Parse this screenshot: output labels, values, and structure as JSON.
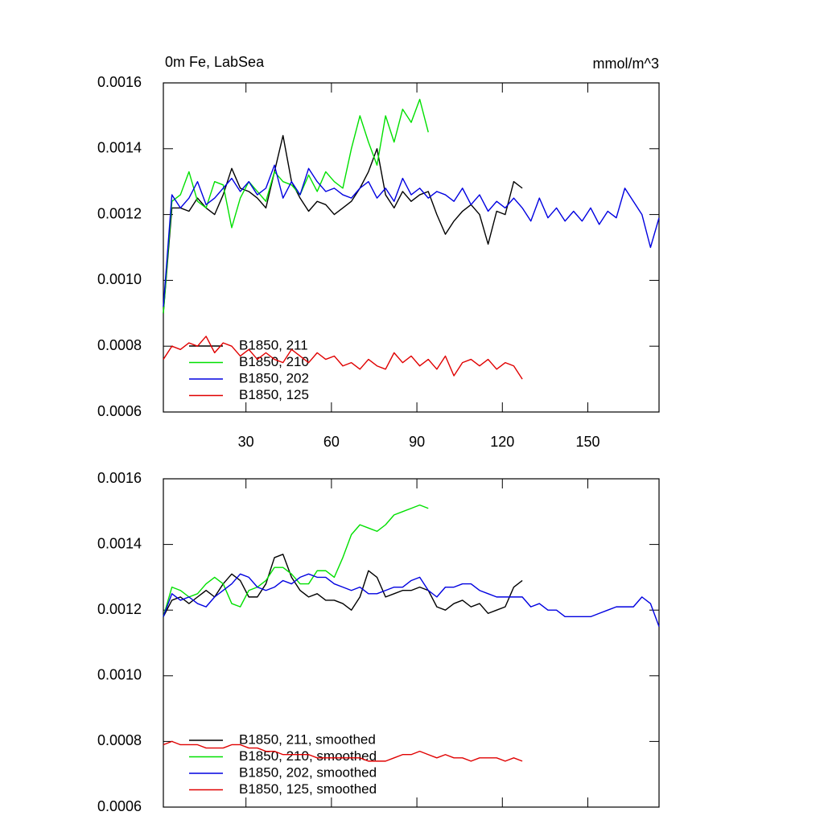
{
  "chart_data": [
    {
      "type": "line",
      "title": "0m Fe, LabSea",
      "units": "mmol/m^3",
      "x": [
        1,
        4,
        7,
        10,
        13,
        16,
        19,
        22,
        25,
        28,
        31,
        34,
        37,
        40,
        43,
        46,
        49,
        52,
        55,
        58,
        61,
        64,
        67,
        70,
        73,
        76,
        79,
        82,
        85,
        88,
        91,
        94,
        97,
        100,
        103,
        106,
        109,
        112,
        115,
        118,
        121,
        124,
        127,
        130,
        133,
        136,
        139,
        142,
        145,
        148,
        151,
        154,
        157,
        160,
        163,
        166,
        169,
        172,
        175
      ],
      "xlim": [
        1,
        175
      ],
      "xticks": [
        30,
        60,
        90,
        120,
        150
      ],
      "xtick_labels": true,
      "ylim": [
        0.0006,
        0.0016
      ],
      "yticks": [
        0.0006,
        0.0008,
        {
          "value": 0.001,
          "label": "0.0010"
        },
        0.0012,
        0.0014,
        0.0016
      ],
      "series": [
        {
          "name": "B1850, 211",
          "color": "#000000",
          "values": [
            0.0009,
            0.00122,
            0.00122,
            0.00121,
            0.00125,
            0.00122,
            0.0012,
            0.00126,
            0.00134,
            0.00128,
            0.00127,
            0.00125,
            0.00122,
            0.00133,
            0.00144,
            0.0013,
            0.00125,
            0.00121,
            0.00124,
            0.00123,
            0.0012,
            0.00122,
            0.00124,
            0.00128,
            0.00133,
            0.0014,
            0.00126,
            0.00122,
            0.00127,
            0.00124,
            0.00126,
            0.00127,
            0.0012,
            0.00114,
            0.00118,
            0.00121,
            0.00123,
            0.0012,
            0.00111,
            0.00121,
            0.0012,
            0.0013,
            0.00128,
            null,
            null,
            null,
            null,
            null,
            null,
            null,
            null,
            null,
            null,
            null,
            null,
            null,
            null,
            null,
            null
          ]
        },
        {
          "name": "B1850, 210",
          "color": "#00e000",
          "values": [
            0.0009,
            0.00124,
            0.00126,
            0.00133,
            0.00124,
            0.00122,
            0.0013,
            0.00129,
            0.00116,
            0.00125,
            0.0013,
            0.00127,
            0.00124,
            0.00133,
            0.0013,
            0.00129,
            0.00126,
            0.00132,
            0.00127,
            0.00133,
            0.0013,
            0.00128,
            0.0014,
            0.0015,
            0.00142,
            0.00135,
            0.0015,
            0.00142,
            0.00152,
            0.00148,
            0.00155,
            0.00145,
            null,
            null,
            null,
            null,
            null,
            null,
            null,
            null,
            null,
            null,
            null,
            null,
            null,
            null,
            null,
            null,
            null,
            null,
            null,
            null,
            null,
            null,
            null,
            null,
            null,
            null,
            null
          ]
        },
        {
          "name": "B1850, 202",
          "color": "#0000e0",
          "values": [
            0.00092,
            0.00126,
            0.00122,
            0.00125,
            0.0013,
            0.00123,
            0.00125,
            0.00128,
            0.00131,
            0.00127,
            0.0013,
            0.00126,
            0.00128,
            0.00135,
            0.00125,
            0.0013,
            0.00126,
            0.00134,
            0.0013,
            0.00127,
            0.00128,
            0.00126,
            0.00125,
            0.00128,
            0.0013,
            0.00125,
            0.00128,
            0.00124,
            0.00131,
            0.00126,
            0.00128,
            0.00125,
            0.00127,
            0.00126,
            0.00124,
            0.00128,
            0.00123,
            0.00126,
            0.00121,
            0.00124,
            0.00122,
            0.00125,
            0.00122,
            0.00118,
            0.00125,
            0.00119,
            0.00122,
            0.00118,
            0.00121,
            0.00118,
            0.00122,
            0.00117,
            0.00121,
            0.00119,
            0.00128,
            0.00124,
            0.0012,
            0.0011,
            0.00119
          ]
        },
        {
          "name": "B1850, 125",
          "color": "#e00000",
          "values": [
            0.00076,
            0.0008,
            0.00079,
            0.00081,
            0.0008,
            0.00083,
            0.00078,
            0.00081,
            0.0008,
            0.00077,
            0.00079,
            0.00076,
            0.00078,
            0.00076,
            0.00075,
            0.00079,
            0.00077,
            0.00075,
            0.00078,
            0.00076,
            0.00077,
            0.00074,
            0.00075,
            0.00073,
            0.00076,
            0.00074,
            0.00073,
            0.00078,
            0.00075,
            0.00077,
            0.00074,
            0.00076,
            0.00073,
            0.00077,
            0.00071,
            0.00075,
            0.00076,
            0.00074,
            0.00076,
            0.00073,
            0.00075,
            0.00074,
            0.0007,
            null,
            null,
            null,
            null,
            null,
            null,
            null,
            null,
            null,
            null,
            null,
            null,
            null,
            null,
            null,
            null
          ]
        }
      ]
    },
    {
      "type": "line",
      "x": [
        1,
        4,
        7,
        10,
        13,
        16,
        19,
        22,
        25,
        28,
        31,
        34,
        37,
        40,
        43,
        46,
        49,
        52,
        55,
        58,
        61,
        64,
        67,
        70,
        73,
        76,
        79,
        82,
        85,
        88,
        91,
        94,
        97,
        100,
        103,
        106,
        109,
        112,
        115,
        118,
        121,
        124,
        127,
        130,
        133,
        136,
        139,
        142,
        145,
        148,
        151,
        154,
        157,
        160,
        163,
        166,
        169,
        172,
        175
      ],
      "xlim": [
        1,
        175
      ],
      "xticks": [
        30,
        60,
        90,
        120,
        150
      ],
      "xtick_labels": false,
      "ylim": [
        0.0006,
        0.0016
      ],
      "yticks": [
        0.0006,
        0.0008,
        {
          "value": 0.001,
          "label": "0.0010"
        },
        0.0012,
        0.0014,
        0.0016
      ],
      "series": [
        {
          "name": "B1850, 211, smoothed",
          "color": "#000000",
          "values": [
            0.00118,
            0.00123,
            0.00124,
            0.00122,
            0.00124,
            0.00126,
            0.00124,
            0.00128,
            0.00131,
            0.00129,
            0.00124,
            0.00124,
            0.00128,
            0.00136,
            0.00137,
            0.0013,
            0.00126,
            0.00124,
            0.00125,
            0.00123,
            0.00123,
            0.00122,
            0.0012,
            0.00124,
            0.00132,
            0.0013,
            0.00124,
            0.00125,
            0.00126,
            0.00126,
            0.00127,
            0.00126,
            0.00121,
            0.0012,
            0.00122,
            0.00123,
            0.00121,
            0.00122,
            0.00119,
            0.0012,
            0.00121,
            0.00127,
            0.00129,
            null,
            null,
            null,
            null,
            null,
            null,
            null,
            null,
            null,
            null,
            null,
            null,
            null,
            null,
            null,
            null
          ]
        },
        {
          "name": "B1850, 210, smoothed",
          "color": "#00e000",
          "values": [
            0.00118,
            0.00127,
            0.00126,
            0.00124,
            0.00125,
            0.00128,
            0.0013,
            0.00128,
            0.00122,
            0.00121,
            0.00126,
            0.00127,
            0.00129,
            0.00133,
            0.00133,
            0.00131,
            0.00128,
            0.00128,
            0.00132,
            0.00132,
            0.0013,
            0.00136,
            0.00143,
            0.00146,
            0.00145,
            0.00144,
            0.00146,
            0.00149,
            0.0015,
            0.00151,
            0.00152,
            0.00151,
            null,
            null,
            null,
            null,
            null,
            null,
            null,
            null,
            null,
            null,
            null,
            null,
            null,
            null,
            null,
            null,
            null,
            null,
            null,
            null,
            null,
            null,
            null,
            null,
            null,
            null,
            null
          ]
        },
        {
          "name": "B1850, 202, smoothed",
          "color": "#0000e0",
          "values": [
            0.00118,
            0.00125,
            0.00123,
            0.00124,
            0.00122,
            0.00121,
            0.00124,
            0.00126,
            0.00128,
            0.00131,
            0.0013,
            0.00127,
            0.00126,
            0.00127,
            0.00129,
            0.00128,
            0.0013,
            0.00131,
            0.0013,
            0.0013,
            0.00128,
            0.00127,
            0.00126,
            0.00127,
            0.00125,
            0.00125,
            0.00126,
            0.00127,
            0.00127,
            0.00129,
            0.0013,
            0.00126,
            0.00124,
            0.00127,
            0.00127,
            0.00128,
            0.00128,
            0.00126,
            0.00125,
            0.00124,
            0.00124,
            0.00124,
            0.00124,
            0.00121,
            0.00122,
            0.0012,
            0.0012,
            0.00118,
            0.00118,
            0.00118,
            0.00118,
            0.00119,
            0.0012,
            0.00121,
            0.00121,
            0.00121,
            0.00124,
            0.00122,
            0.00115
          ]
        },
        {
          "name": "B1850, 125, smoothed",
          "color": "#e00000",
          "values": [
            0.00079,
            0.0008,
            0.00079,
            0.00079,
            0.00079,
            0.00078,
            0.00078,
            0.00078,
            0.00079,
            0.00079,
            0.00078,
            0.00078,
            0.00077,
            0.00077,
            0.00076,
            0.00076,
            0.00076,
            0.00076,
            0.00075,
            0.00075,
            0.00075,
            0.00075,
            0.00075,
            0.00075,
            0.00074,
            0.00074,
            0.00074,
            0.00075,
            0.00076,
            0.00076,
            0.00077,
            0.00076,
            0.00075,
            0.00076,
            0.00075,
            0.00075,
            0.00074,
            0.00075,
            0.00075,
            0.00075,
            0.00074,
            0.00075,
            0.00074,
            null,
            null,
            null,
            null,
            null,
            null,
            null,
            null,
            null,
            null,
            null,
            null,
            null,
            null,
            null,
            null
          ]
        }
      ]
    }
  ]
}
